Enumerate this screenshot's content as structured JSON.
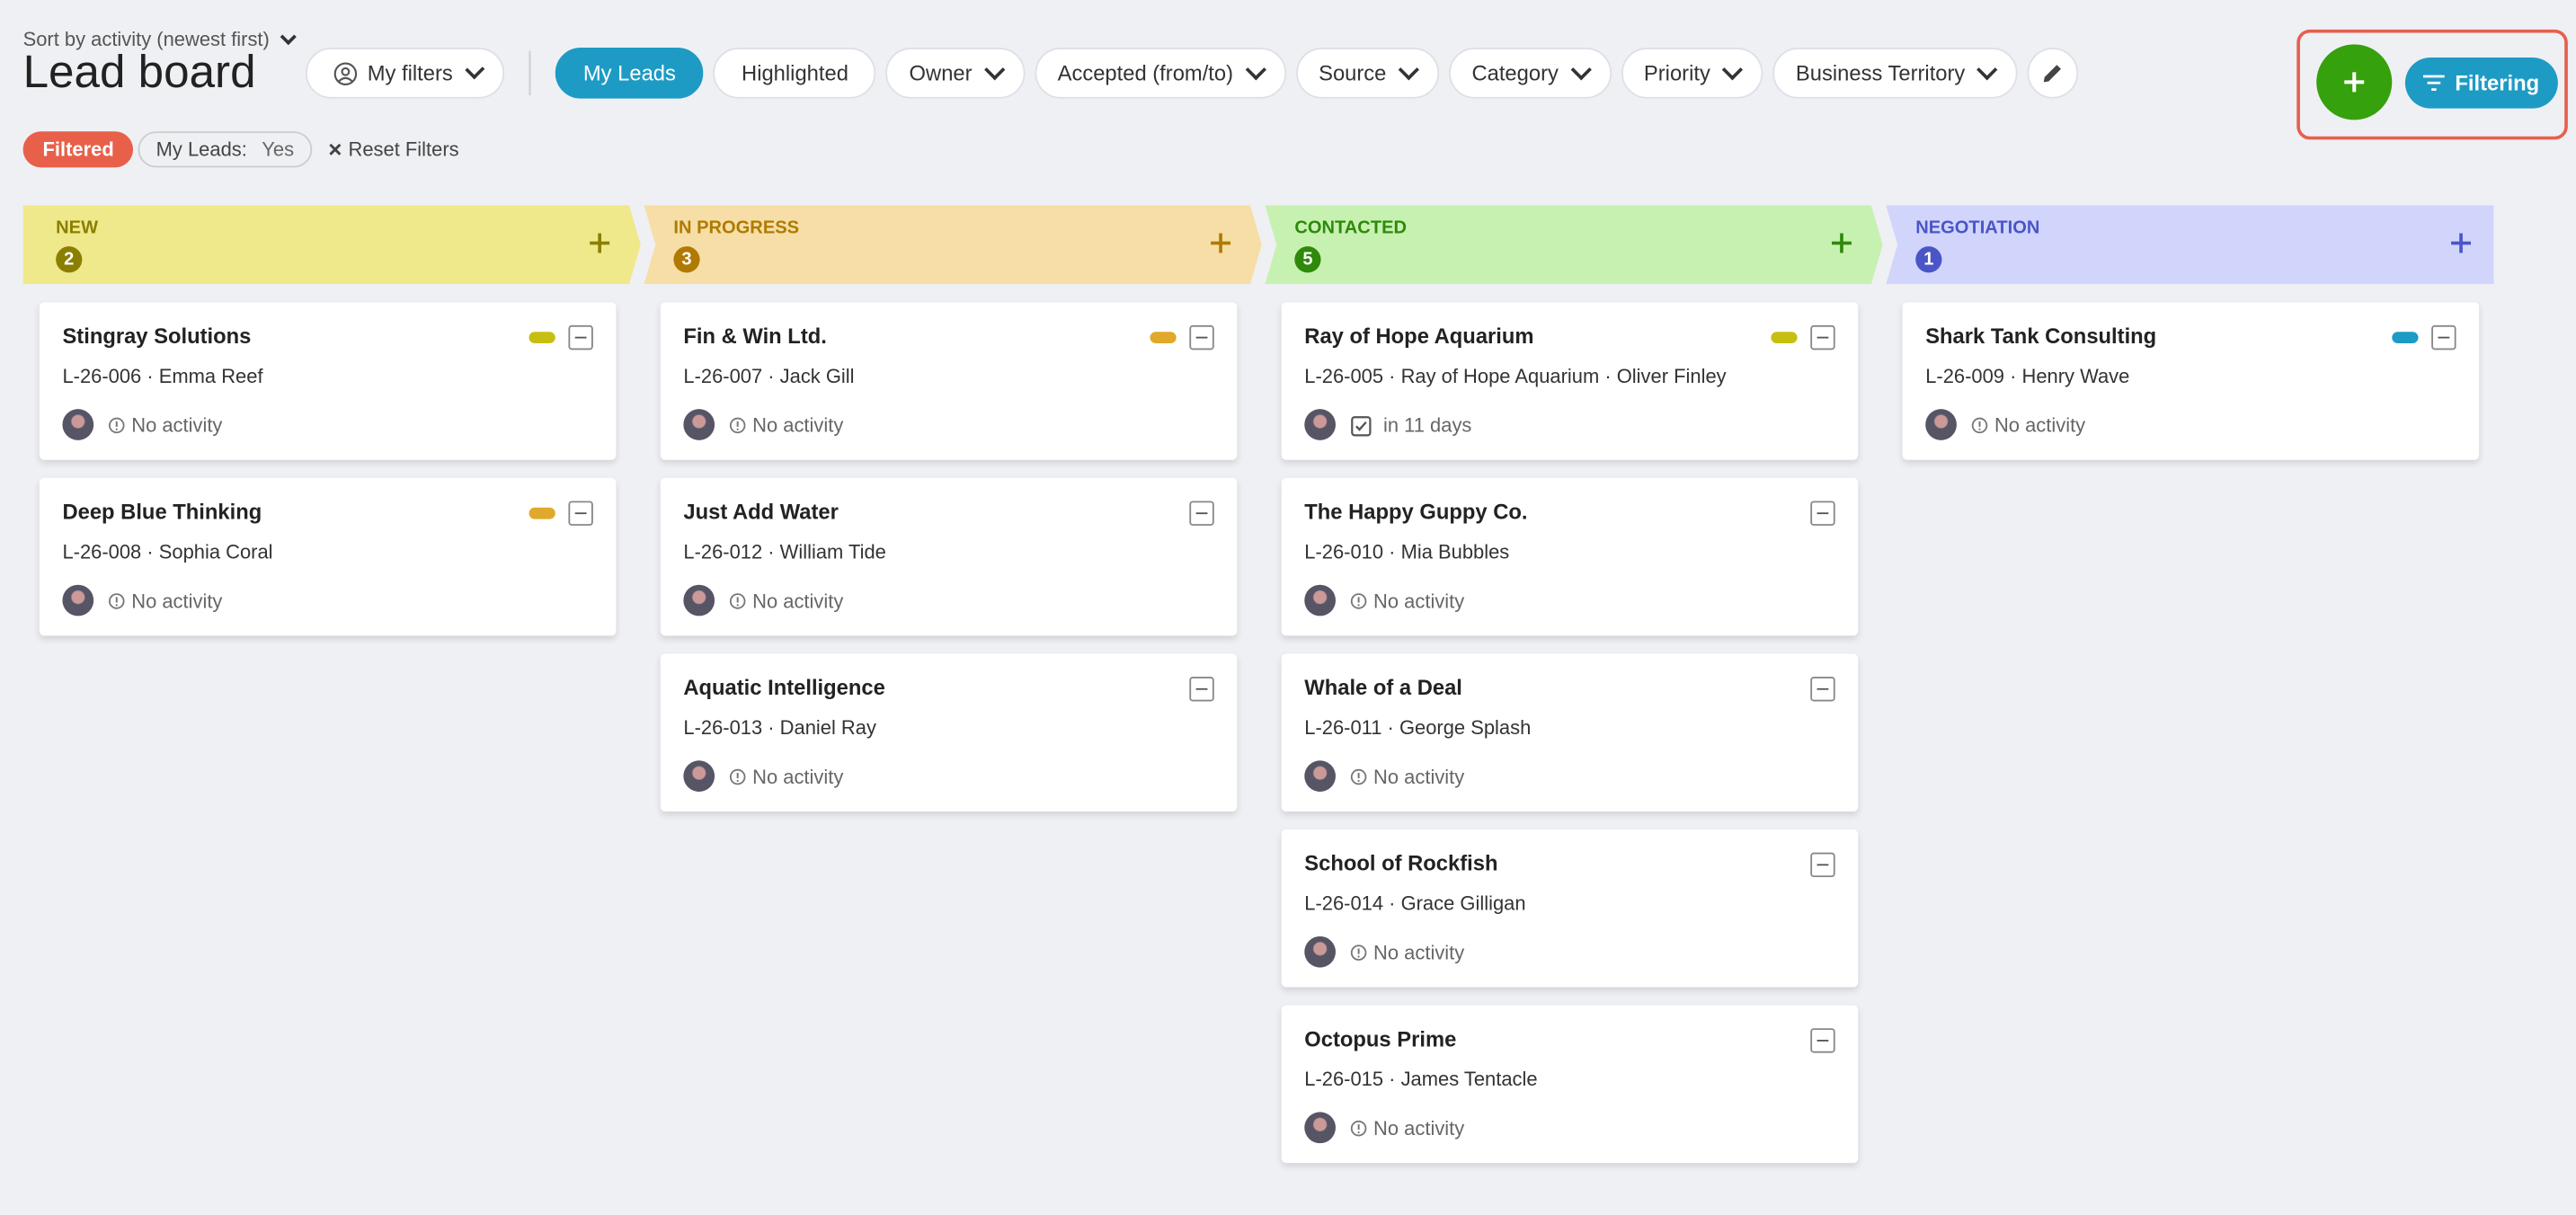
{
  "header": {
    "sort_label": "Sort by activity (newest first)",
    "title": "Lead board",
    "my_filters": "My filters"
  },
  "filter_buttons": [
    "My Leads",
    "Highlighted",
    "Owner",
    "Accepted (from/to)",
    "Source",
    "Category",
    "Priority",
    "Business Territory"
  ],
  "active_filter_button": 0,
  "actions": {
    "filtering": "Filtering"
  },
  "active_filters": {
    "status": "Filtered",
    "chip_label": "My Leads:",
    "chip_value": "Yes",
    "reset": "Reset Filters"
  },
  "columns": [
    {
      "name": "NEW",
      "count": 2,
      "bg": "#efe98b",
      "fg": "#8a7f00",
      "cards": [
        {
          "title": "Stingray Solutions",
          "subtitle": "L-26-006 · Emma Reef",
          "activity": "No activity",
          "activity_icon": "info",
          "tag_color": "#c7be12"
        },
        {
          "title": "Deep Blue Thinking",
          "subtitle": "L-26-008 · Sophia Coral",
          "activity": "No activity",
          "activity_icon": "info",
          "tag_color": "#e0a92a"
        }
      ]
    },
    {
      "name": "IN PROGRESS",
      "count": 3,
      "bg": "#f6dea6",
      "fg": "#b07a00",
      "cards": [
        {
          "title": "Fin & Win Ltd.",
          "subtitle": "L-26-007 · Jack Gill",
          "activity": "No activity",
          "activity_icon": "info",
          "tag_color": "#e0a92a"
        },
        {
          "title": "Just Add Water",
          "subtitle": "L-26-012 · William Tide",
          "activity": "No activity",
          "activity_icon": "info"
        },
        {
          "title": "Aquatic Intelligence",
          "subtitle": "L-26-013 · Daniel Ray",
          "activity": "No activity",
          "activity_icon": "info"
        }
      ]
    },
    {
      "name": "CONTACTED",
      "count": 5,
      "bg": "#c7f1b1",
      "fg": "#2e8a0a",
      "cards": [
        {
          "title": "Ray of Hope Aquarium",
          "subtitle": "L-26-005 · Ray of Hope Aquarium · Oliver Finley",
          "activity": "in 11 days",
          "activity_icon": "task",
          "tag_color": "#c7be12"
        },
        {
          "title": "The Happy Guppy Co.",
          "subtitle": "L-26-010 · Mia Bubbles",
          "activity": "No activity",
          "activity_icon": "info"
        },
        {
          "title": "Whale of a Deal",
          "subtitle": "L-26-011 · George Splash",
          "activity": "No activity",
          "activity_icon": "info"
        },
        {
          "title": "School of Rockfish",
          "subtitle": "L-26-014 · Grace Gilligan",
          "activity": "No activity",
          "activity_icon": "info"
        },
        {
          "title": "Octopus Prime",
          "subtitle": "L-26-015 · James Tentacle",
          "activity": "No activity",
          "activity_icon": "info"
        }
      ]
    },
    {
      "name": "NEGOTIATION",
      "count": 1,
      "bg": "#d1d5fb",
      "fg": "#4a55c8",
      "cards": [
        {
          "title": "Shark Tank Consulting",
          "subtitle": "L-26-009 · Henry Wave",
          "activity": "No activity",
          "activity_icon": "info",
          "tag_color": "#1d9bc4"
        }
      ]
    }
  ]
}
